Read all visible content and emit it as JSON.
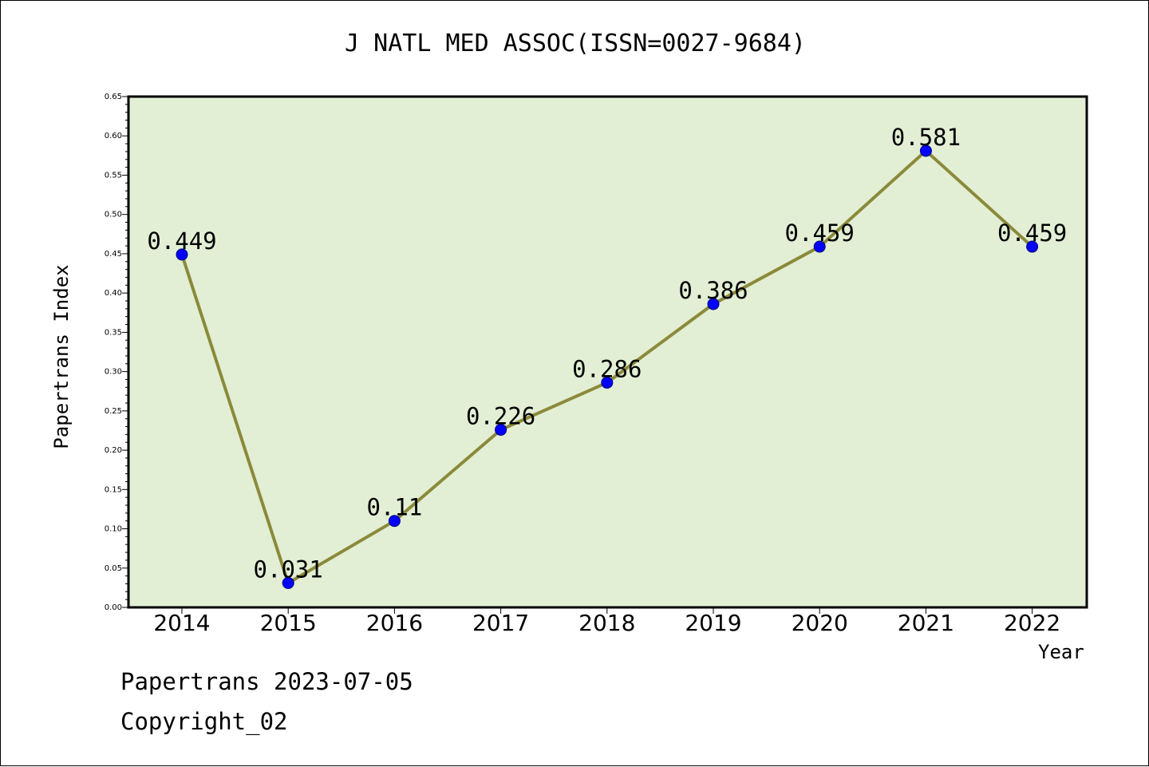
{
  "chart_data": {
    "type": "line",
    "title": "J NATL MED ASSOC(ISSN=0027-9684)",
    "xlabel": "Year",
    "ylabel": "Papertrans Index",
    "categories": [
      "2014",
      "2015",
      "2016",
      "2017",
      "2018",
      "2019",
      "2020",
      "2021",
      "2022"
    ],
    "series": [
      {
        "values": [
          0.449,
          0.031,
          0.11,
          0.226,
          0.286,
          0.386,
          0.459,
          0.581,
          0.459
        ],
        "labels": [
          "0.449",
          "0.031",
          "0.11",
          "0.226",
          "0.286",
          "0.386",
          "0.459",
          "0.581",
          "0.459"
        ],
        "line_color": "#8B8A3A",
        "marker_color": "#0000FF"
      }
    ],
    "ylim": [
      0,
      0.65
    ],
    "yticks": [
      "0.00",
      "0.05",
      "0.10",
      "0.15",
      "0.20",
      "0.25",
      "0.30",
      "0.35",
      "0.40",
      "0.45",
      "0.50",
      "0.55",
      "0.60",
      "0.65"
    ],
    "plot_background": "#E2EFD5",
    "grid": false
  },
  "footer": {
    "date": "Papertrans 2023-07-05",
    "copyright": "Copyright_02"
  }
}
